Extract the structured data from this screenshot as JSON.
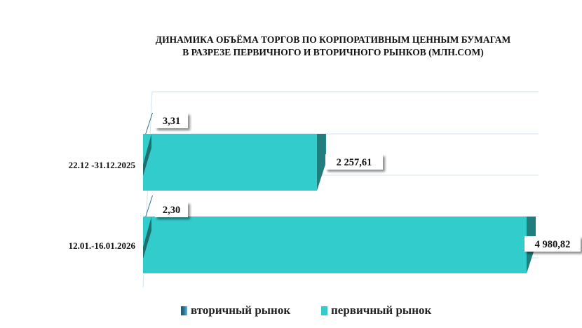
{
  "chart_data": {
    "type": "bar",
    "orientation": "horizontal",
    "style": "3d",
    "title_lines": [
      "ДИНАМИКА ОБЪЁМА ТОРГОВ ПО КОРПОРАТИВНЫМ ЦЕННЫМ БУМАГАМ",
      "В РАЗРЕЗЕ ПЕРВИЧНОГО И ВТОРИЧНОГО РЫНКОВ  (МЛН.СОМ)"
    ],
    "categories": [
      "22.12 -31.12.2025",
      "12.01.-16.01.2026"
    ],
    "series": [
      {
        "name": "вторичный рынок",
        "color": "#2a6d8c",
        "values": [
          3.31,
          2.3
        ],
        "labels": [
          "3,31",
          "2,30"
        ]
      },
      {
        "name": "первичный рынок",
        "color": "#33cccc",
        "values": [
          2257.61,
          4980.82
        ],
        "labels": [
          "2 257,61",
          "4 980,82"
        ]
      }
    ],
    "xlim": [
      0,
      5000
    ],
    "grid": true,
    "legend_position": "bottom"
  }
}
